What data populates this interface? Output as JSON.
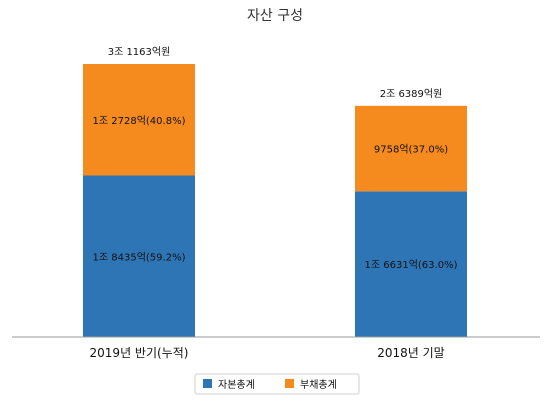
{
  "chart_data": {
    "type": "bar",
    "stacked": true,
    "title": "자산 구성",
    "categories": [
      "2019년 반기(누적)",
      "2018년 기말"
    ],
    "totals": [
      31163,
      26389
    ],
    "total_labels": [
      "3조 1163억원",
      "2조 6389억원"
    ],
    "series": [
      {
        "name": "자본총계",
        "color": "#2e75b6",
        "values": [
          18435,
          16631
        ],
        "labels": [
          "1조 8435억(59.2%)",
          "1조 6631억(63.0%)"
        ]
      },
      {
        "name": "부채총계",
        "color": "#f58a1f",
        "values": [
          12728,
          9758
        ],
        "labels": [
          "1조 2728억(40.8%)",
          "9758억(37.0%)"
        ]
      }
    ],
    "grid": false,
    "legend_position": "bottom-center"
  }
}
